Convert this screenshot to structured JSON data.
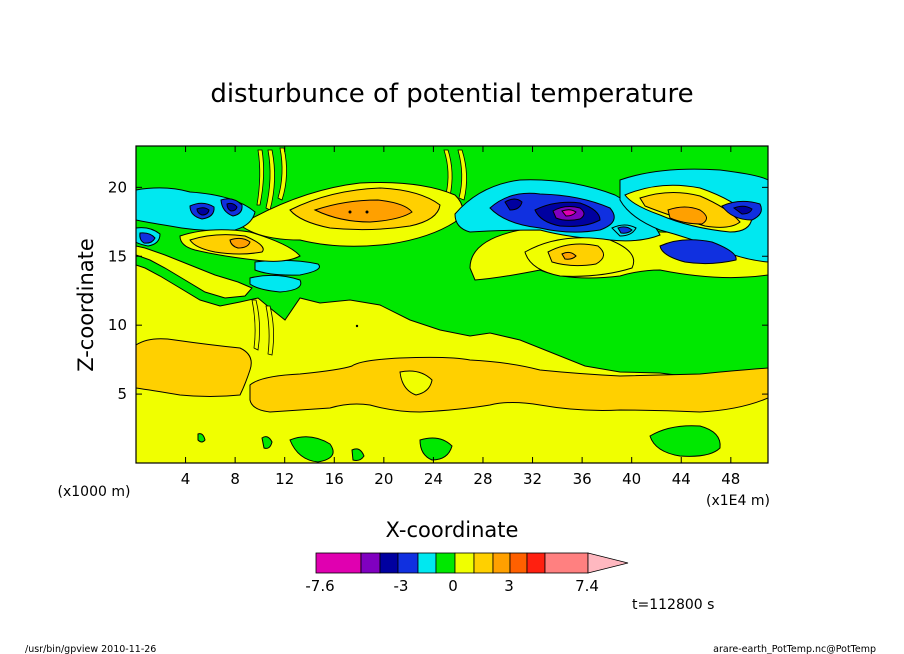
{
  "chart_data": {
    "type": "heatmap",
    "title": "disturbunce of potential temperature",
    "xlabel": "X-coordinate",
    "ylabel": "Z-coordinate",
    "x_unit_note": "(x1000 m)",
    "x_scale_note": "(x1E4 m)",
    "xlim": [
      0,
      51
    ],
    "ylim": [
      0,
      23
    ],
    "x_ticks": [
      4,
      8,
      12,
      16,
      20,
      24,
      28,
      32,
      36,
      40,
      44,
      48
    ],
    "y_ticks": [
      5,
      10,
      15,
      20
    ],
    "colorbar": {
      "min": -7.6,
      "max": 7.4,
      "tick_labels": [
        "-7.6",
        "-3",
        "0",
        "3",
        "7.4"
      ],
      "tick_values": [
        -7.6,
        -3,
        0,
        3,
        7.4
      ],
      "colors": [
        "#e000b0",
        "#8000c0",
        "#0000a0",
        "#1030e0",
        "#00e8f0",
        "#00e800",
        "#f0ff00",
        "#ffd000",
        "#ffa000",
        "#ff6000",
        "#ff2010",
        "#ff8080",
        "#ffb8c0"
      ]
    },
    "time_label": "t=112800 s"
  },
  "footer": {
    "left": "/usr/bin/gpview   2010-11-26",
    "right": "arare-earth_PotTemp.nc@PotTemp"
  },
  "colors": {
    "green": "#00e800",
    "yellow": "#f0ff00",
    "gold": "#ffd000",
    "orange": "#ffa000",
    "cyan": "#00e8f0",
    "blue": "#1030e0",
    "navy": "#0000a0",
    "purple": "#8000c0",
    "magenta": "#e000b0"
  }
}
